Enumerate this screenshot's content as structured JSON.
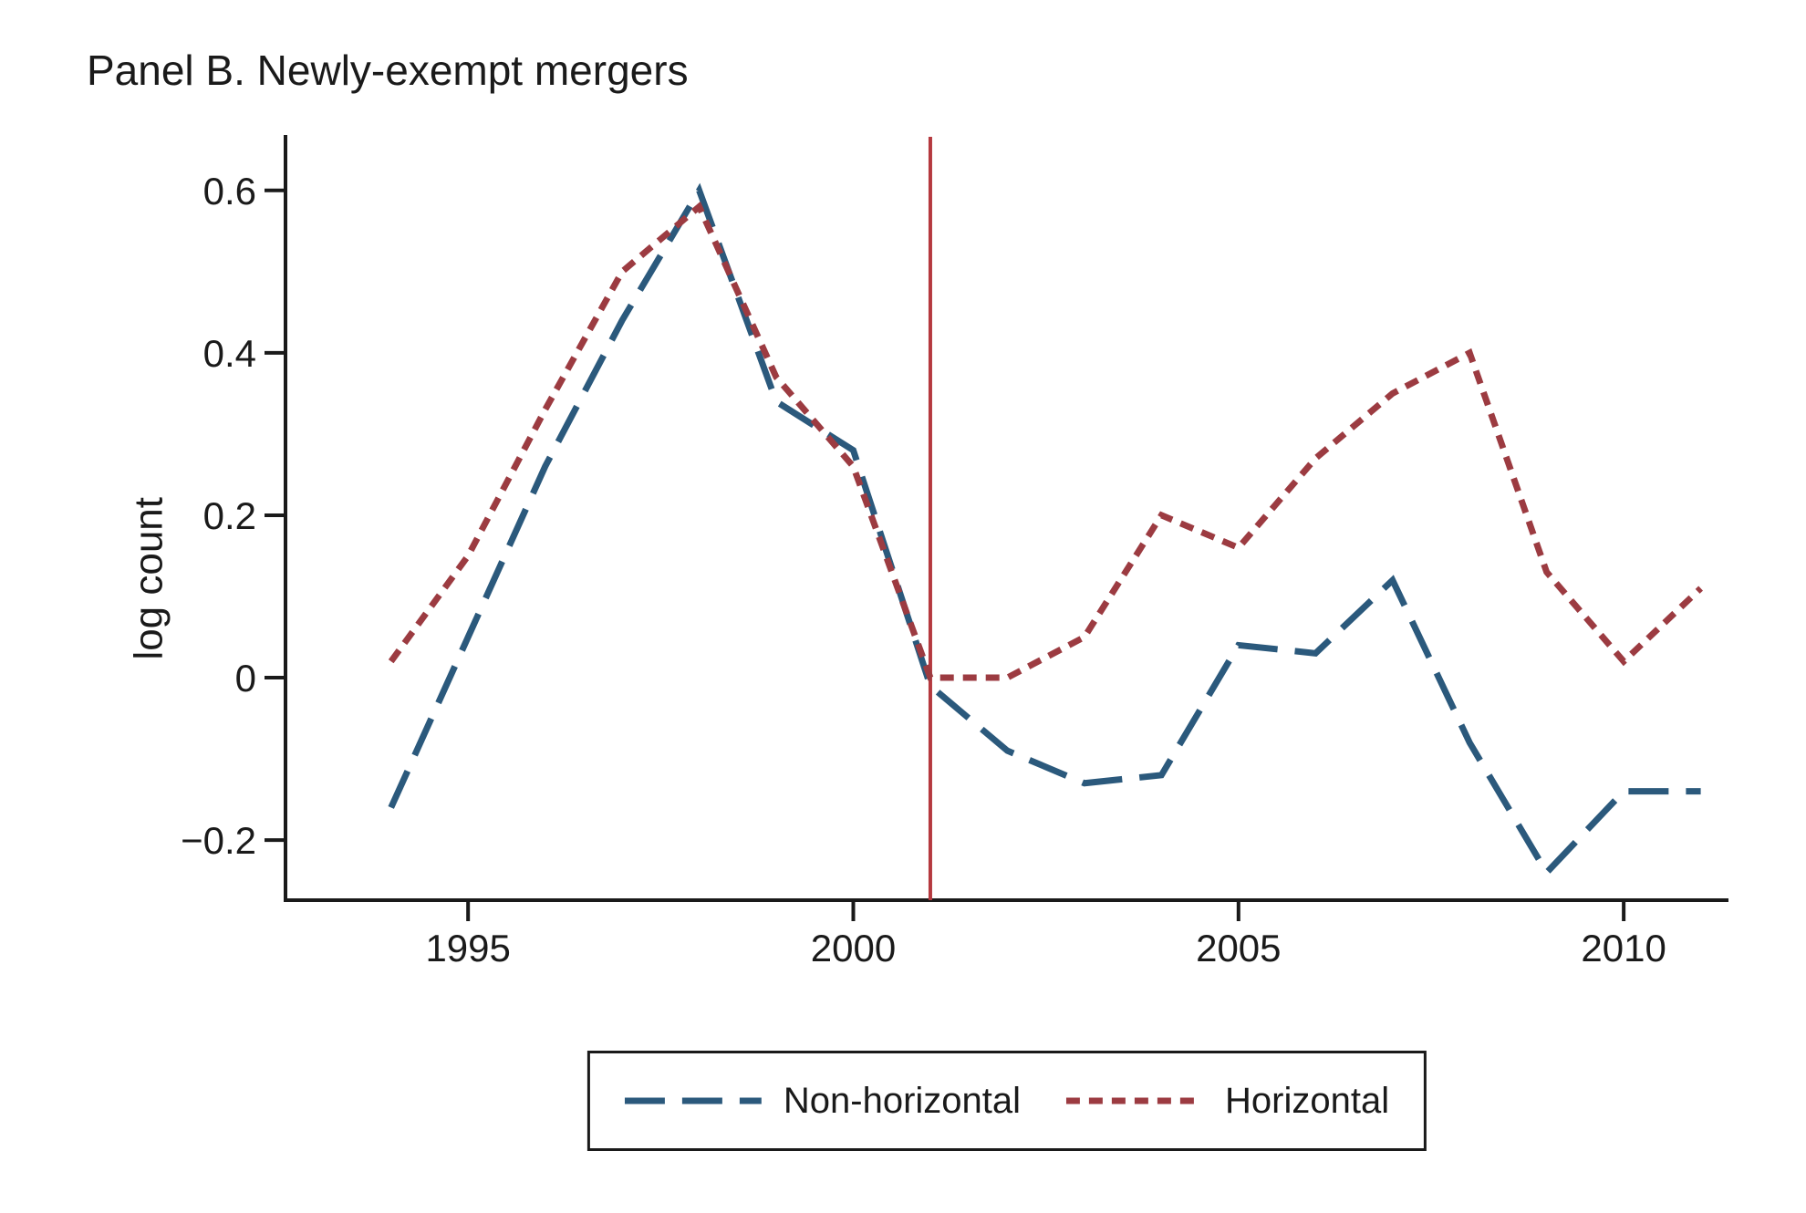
{
  "chart_data": {
    "type": "line",
    "title": "Panel B. Newly-exempt mergers",
    "xlabel": "",
    "ylabel": "log count",
    "x": [
      1994,
      1995,
      1996,
      1997,
      1998,
      1999,
      2000,
      2001,
      2002,
      2003,
      2004,
      2005,
      2006,
      2007,
      2008,
      2009,
      2010,
      2011
    ],
    "series": [
      {
        "name": "Non-horizontal",
        "color": "#2b597c",
        "dash": "long",
        "values": [
          -0.16,
          0.05,
          0.26,
          0.44,
          0.6,
          0.34,
          0.28,
          -0.01,
          -0.09,
          -0.13,
          -0.12,
          0.04,
          0.03,
          0.12,
          -0.08,
          -0.24,
          -0.14,
          -0.14
        ]
      },
      {
        "name": "Horizontal",
        "color": "#9c3b41",
        "dash": "short",
        "values": [
          0.02,
          0.15,
          0.33,
          0.5,
          0.58,
          0.37,
          0.26,
          0.0,
          0.0,
          0.05,
          0.2,
          0.16,
          0.27,
          0.35,
          0.4,
          0.13,
          0.02,
          0.11
        ]
      }
    ],
    "vline": {
      "x": 2001,
      "color": "#b5393f"
    },
    "xlim": [
      1992.63,
      2011.36
    ],
    "ylim": [
      -0.274,
      0.666
    ],
    "xticks": [
      {
        "value": 1995,
        "label": "1995"
      },
      {
        "value": 2000,
        "label": "2000"
      },
      {
        "value": 2005,
        "label": "2005"
      },
      {
        "value": 2010,
        "label": "2010"
      }
    ],
    "yticks": [
      {
        "value": -0.2,
        "label": "−0.2"
      },
      {
        "value": 0,
        "label": "0"
      },
      {
        "value": 0.2,
        "label": "0.2"
      },
      {
        "value": 0.4,
        "label": "0.4"
      },
      {
        "value": 0.6,
        "label": "0.6"
      }
    ],
    "grid": false,
    "legend_position": "bottom-center",
    "axis_color": "#1a1a1a"
  }
}
